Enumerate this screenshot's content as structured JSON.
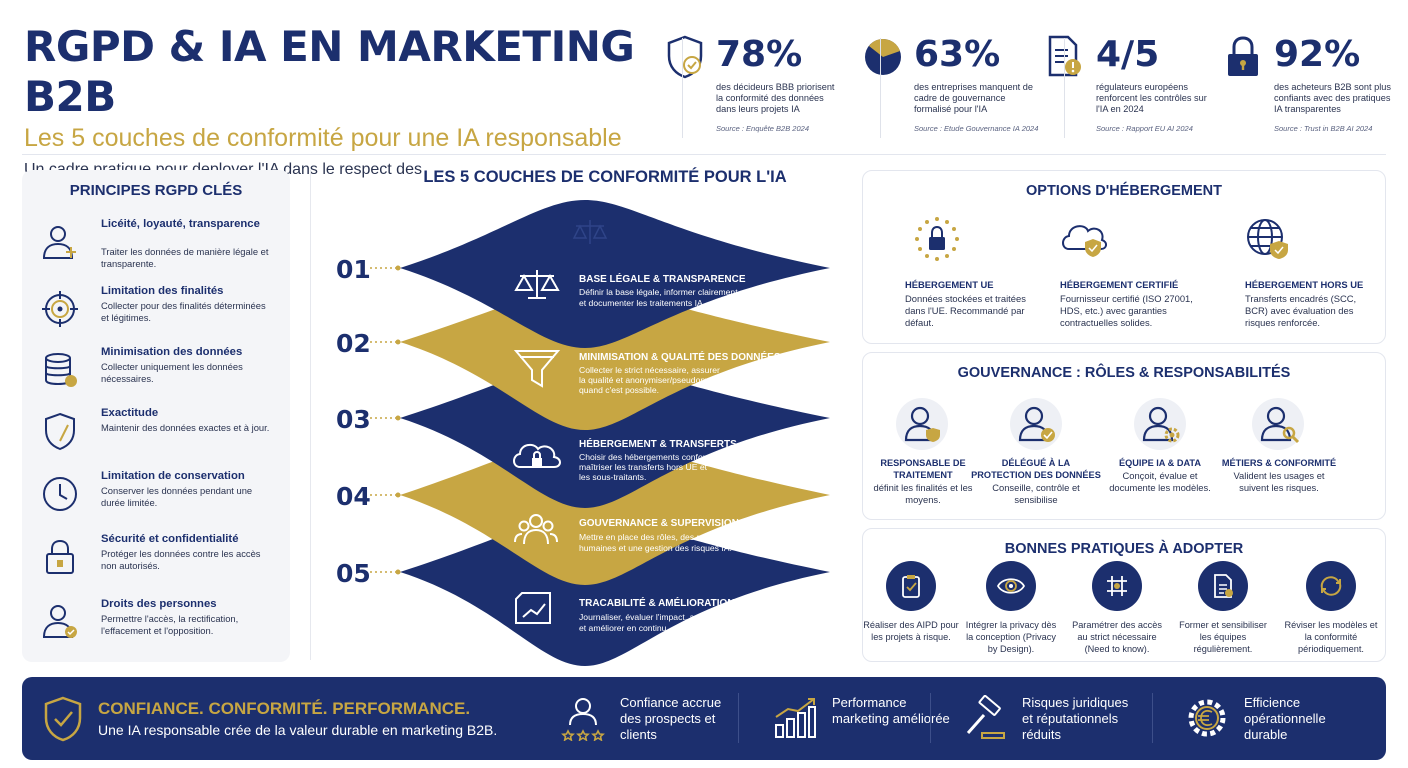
{
  "header": {
    "title": "RGPD & IA EN MARKETING B2B",
    "subtitle": "Les 5 couches de conformité pour une IA responsable",
    "intro": "Un cadre pratique pour deployer l'IA dans le respect des données et de la confiance."
  },
  "stats": [
    {
      "icon": "shield-check-icon",
      "value": "78%",
      "desc": "des décideurs BBB priorisent la conformité des données dans leurs projets IA",
      "source": "Source : Enquête B2B 2024"
    },
    {
      "icon": "pie-chart-icon",
      "value": "63%",
      "desc": "des entreprises manquent de cadre de gouvernance formalisé pour l'IA",
      "source": "Source : Etude Gouvernance IA 2024"
    },
    {
      "icon": "document-alert-icon",
      "value": "4/5",
      "desc": "régulateurs européens renforcent les contrôles sur l'IA en 2024",
      "source": "Source : Rapport EU AI 2024"
    },
    {
      "icon": "padlock-icon",
      "value": "92%",
      "desc": "des acheteurs B2B sont plus confiants avec des pratiques IA transparentes",
      "source": "Source : Trust in B2B AI 2024"
    }
  ],
  "principles": {
    "title": "PRINCIPES RGPD CLÉS",
    "items": [
      {
        "icon": "user-scale-icon",
        "title": "Licéité, loyauté, transparence",
        "text": "Traiter les données de manière légale et transparente."
      },
      {
        "icon": "target-icon",
        "title": "Limitation des finalités",
        "text": "Collecter pour des finalités déterminées et légitimes."
      },
      {
        "icon": "database-icon",
        "title": "Minimisation des données",
        "text": "Collecter uniquement les données nécessaires."
      },
      {
        "icon": "shield-icon",
        "title": "Exactitude",
        "text": "Maintenir des données exactes et à jour."
      },
      {
        "icon": "clock-icon",
        "title": "Limitation de conservation",
        "text": "Conserver les données pendant une durée limitée."
      },
      {
        "icon": "lock-icon",
        "title": "Sécurité et confidentialité",
        "text": "Protéger les données contre les accès non autorisés."
      },
      {
        "icon": "user-check-icon",
        "title": "Droits des personnes",
        "text": "Permettre l'accès, la rectification, l'effacement et l'opposition."
      }
    ]
  },
  "layers": {
    "title": "LES 5 COUCHES DE CONFORMITÉ POUR L'IA",
    "items": [
      {
        "num": "01",
        "icon": "scale-icon",
        "title": "BASE LÉGALE & TRANSPARENCE",
        "text": [
          "Définir la base légale, informer clairement",
          "et documenter les traitements IA."
        ]
      },
      {
        "num": "02",
        "icon": "funnel-icon",
        "title": "MINIMISATION & QUALITÉ DES DONNÉES",
        "text": [
          "Collecter le strict nécessaire, assurer",
          "la qualité et anonymiser/pseudonymiser",
          "quand c'est possible."
        ]
      },
      {
        "num": "03",
        "icon": "cloud-lock-icon",
        "title": "HÉBERGEMENT & TRANSFERTS",
        "text": [
          "Choisir des hébergements conformes,",
          "maîtriser les transferts hors UE et",
          "les sous-traitants."
        ]
      },
      {
        "num": "04",
        "icon": "people-icon",
        "title": "GOUVERNANCE & SUPERVISION",
        "text": [
          "Mettre en place des rôles, des revues",
          "humaines et une gestion des risques IA."
        ]
      },
      {
        "num": "05",
        "icon": "document-chart-icon",
        "title": "TRACABILITÉ & AMÉLIORATION CONTINUE",
        "text": [
          "Journaliser, évaluer l'impact, auditer",
          "et améliorer en continu."
        ]
      }
    ]
  },
  "hosting": {
    "title": "OPTIONS D'HÉBERGEMENT",
    "items": [
      {
        "icon": "eu-lock-icon",
        "title": "HÉBERGEMENT UE",
        "text": "Données stockées et traitées dans l'UE. Recommandé par défaut."
      },
      {
        "icon": "cloud-shield-icon",
        "title": "HÉBERGEMENT CERTIFIÉ",
        "text": "Fournisseur certifié (ISO 27001, HDS, etc.) avec garanties contractuelles solides."
      },
      {
        "icon": "globe-shield-icon",
        "title": "HÉBERGEMENT HORS UE",
        "text": "Transferts encadrés (SCC, BCR) avec évaluation des risques renforcée."
      }
    ]
  },
  "governance": {
    "title": "GOUVERNANCE : RÔLES & RESPONSABILITÉS",
    "items": [
      {
        "icon": "user-shield-icon",
        "title": "RESPONSABLE DE TRAITEMENT",
        "text": "définit les finalités et les moyens."
      },
      {
        "icon": "user-check-icon",
        "title": "DÉLÉGUÉ À LA PROTECTION DES DONNÉES",
        "text": "Conseille, contrôle et sensibilise"
      },
      {
        "icon": "user-gear-icon",
        "title": "ÉQUIPE IA & DATA",
        "text": "Conçoit, évalue et documente les modèles."
      },
      {
        "icon": "user-search-icon",
        "title": "MÉTIERS & CONFORMITÉ",
        "text": "Valident les usages et suivent les risques."
      }
    ]
  },
  "practices": {
    "title": "BONNES PRATIQUES À ADOPTER",
    "items": [
      {
        "icon": "clipboard-icon",
        "text": "Réaliser des AIPD pour les projets à risque."
      },
      {
        "icon": "eye-icon",
        "text": "Intégrer la privacy dès la conception (Privacy by Design)."
      },
      {
        "icon": "grid-icon",
        "text": "Paramétrer des accès au strict nécessaire (Need to know)."
      },
      {
        "icon": "document-icon",
        "text": "Former et sensibiliser les équipes régulièrement."
      },
      {
        "icon": "refresh-icon",
        "text": "Réviser les modèles et la conformité périodiquement."
      }
    ]
  },
  "footer": {
    "title": "CONFIANCE. CONFORMITÉ. PERFORMANCE.",
    "subtitle": "Une IA responsable crée de la valeur durable en marketing B2B.",
    "benefits": [
      {
        "icon": "user-stars-icon",
        "text": "Confiance accrue des prospects et clients"
      },
      {
        "icon": "bar-chart-icon",
        "text": "Performance marketing améliorée"
      },
      {
        "icon": "gavel-icon",
        "text": "Risques juridiques et réputationnels réduits"
      },
      {
        "icon": "euro-gear-icon",
        "text": "Efficience opérationnelle durable"
      }
    ]
  },
  "colors": {
    "navy": "#1c2f6e",
    "gold": "#c7a643",
    "text": "#2a3350",
    "panel": "#f4f5f8"
  }
}
